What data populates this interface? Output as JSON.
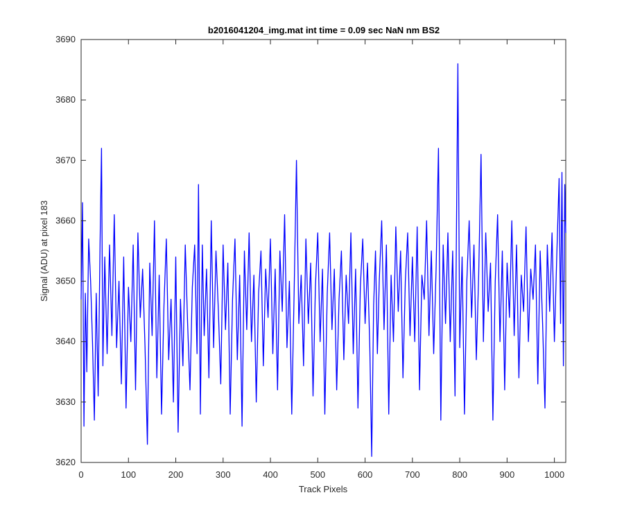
{
  "chart_data": {
    "type": "line",
    "title": "b2016041204_img.mat int time = 0.09 sec  NaN nm BS2",
    "xlabel": "Track Pixels",
    "ylabel": "Signal (ADU) at pixel 183",
    "xlim": [
      0,
      1024
    ],
    "ylim": [
      3620,
      3690
    ],
    "xticks": [
      0,
      100,
      200,
      300,
      400,
      500,
      600,
      700,
      800,
      900,
      1000
    ],
    "yticks": [
      3620,
      3630,
      3640,
      3650,
      3660,
      3670,
      3680,
      3690
    ],
    "grid": false,
    "line_color": "#0000ff",
    "series": [
      {
        "points": [
          [
            0,
            3647
          ],
          [
            3,
            3663
          ],
          [
            6,
            3626
          ],
          [
            9,
            3648
          ],
          [
            12,
            3635
          ],
          [
            16,
            3657
          ],
          [
            20,
            3650
          ],
          [
            24,
            3640
          ],
          [
            28,
            3627
          ],
          [
            32,
            3648
          ],
          [
            36,
            3631
          ],
          [
            40,
            3656
          ],
          [
            43,
            3672
          ],
          [
            46,
            3636
          ],
          [
            50,
            3654
          ],
          [
            55,
            3638
          ],
          [
            60,
            3656
          ],
          [
            65,
            3641
          ],
          [
            70,
            3661
          ],
          [
            75,
            3639
          ],
          [
            80,
            3650
          ],
          [
            85,
            3633
          ],
          [
            90,
            3654
          ],
          [
            95,
            3629
          ],
          [
            100,
            3649
          ],
          [
            105,
            3640
          ],
          [
            110,
            3656
          ],
          [
            115,
            3632
          ],
          [
            120,
            3658
          ],
          [
            125,
            3644
          ],
          [
            130,
            3652
          ],
          [
            135,
            3639
          ],
          [
            140,
            3623
          ],
          [
            145,
            3653
          ],
          [
            150,
            3641
          ],
          [
            155,
            3660
          ],
          [
            160,
            3634
          ],
          [
            165,
            3651
          ],
          [
            170,
            3628
          ],
          [
            175,
            3646
          ],
          [
            180,
            3657
          ],
          [
            185,
            3637
          ],
          [
            190,
            3647
          ],
          [
            195,
            3630
          ],
          [
            200,
            3654
          ],
          [
            205,
            3625
          ],
          [
            210,
            3647
          ],
          [
            215,
            3636
          ],
          [
            220,
            3656
          ],
          [
            225,
            3643
          ],
          [
            230,
            3632
          ],
          [
            235,
            3649
          ],
          [
            240,
            3656
          ],
          [
            245,
            3638
          ],
          [
            248,
            3666
          ],
          [
            252,
            3628
          ],
          [
            256,
            3656
          ],
          [
            260,
            3641
          ],
          [
            265,
            3652
          ],
          [
            270,
            3634
          ],
          [
            275,
            3660
          ],
          [
            280,
            3639
          ],
          [
            285,
            3655
          ],
          [
            290,
            3645
          ],
          [
            295,
            3633
          ],
          [
            300,
            3656
          ],
          [
            305,
            3642
          ],
          [
            310,
            3653
          ],
          [
            315,
            3628
          ],
          [
            320,
            3647
          ],
          [
            325,
            3657
          ],
          [
            330,
            3637
          ],
          [
            335,
            3651
          ],
          [
            340,
            3626
          ],
          [
            345,
            3655
          ],
          [
            350,
            3642
          ],
          [
            355,
            3658
          ],
          [
            360,
            3640
          ],
          [
            365,
            3651
          ],
          [
            370,
            3630
          ],
          [
            375,
            3648
          ],
          [
            380,
            3655
          ],
          [
            385,
            3636
          ],
          [
            390,
            3652
          ],
          [
            395,
            3644
          ],
          [
            400,
            3657
          ],
          [
            405,
            3638
          ],
          [
            410,
            3652
          ],
          [
            415,
            3632
          ],
          [
            420,
            3655
          ],
          [
            425,
            3645
          ],
          [
            430,
            3661
          ],
          [
            435,
            3639
          ],
          [
            440,
            3650
          ],
          [
            445,
            3628
          ],
          [
            450,
            3648
          ],
          [
            455,
            3670
          ],
          [
            460,
            3643
          ],
          [
            465,
            3651
          ],
          [
            470,
            3636
          ],
          [
            475,
            3657
          ],
          [
            480,
            3643
          ],
          [
            485,
            3653
          ],
          [
            490,
            3631
          ],
          [
            495,
            3649
          ],
          [
            500,
            3658
          ],
          [
            505,
            3640
          ],
          [
            510,
            3652
          ],
          [
            515,
            3628
          ],
          [
            520,
            3648
          ],
          [
            525,
            3658
          ],
          [
            530,
            3642
          ],
          [
            535,
            3652
          ],
          [
            540,
            3632
          ],
          [
            545,
            3647
          ],
          [
            550,
            3655
          ],
          [
            555,
            3637
          ],
          [
            560,
            3651
          ],
          [
            565,
            3643
          ],
          [
            570,
            3658
          ],
          [
            575,
            3638
          ],
          [
            580,
            3652
          ],
          [
            585,
            3629
          ],
          [
            590,
            3649
          ],
          [
            595,
            3657
          ],
          [
            600,
            3643
          ],
          [
            605,
            3653
          ],
          [
            610,
            3639
          ],
          [
            614,
            3621
          ],
          [
            618,
            3646
          ],
          [
            622,
            3655
          ],
          [
            626,
            3638
          ],
          [
            630,
            3650
          ],
          [
            635,
            3660
          ],
          [
            640,
            3642
          ],
          [
            645,
            3656
          ],
          [
            650,
            3628
          ],
          [
            655,
            3651
          ],
          [
            660,
            3640
          ],
          [
            665,
            3659
          ],
          [
            670,
            3645
          ],
          [
            675,
            3655
          ],
          [
            680,
            3634
          ],
          [
            685,
            3650
          ],
          [
            690,
            3658
          ],
          [
            695,
            3641
          ],
          [
            700,
            3654
          ],
          [
            705,
            3640
          ],
          [
            710,
            3659
          ],
          [
            715,
            3632
          ],
          [
            720,
            3651
          ],
          [
            725,
            3647
          ],
          [
            730,
            3660
          ],
          [
            735,
            3641
          ],
          [
            740,
            3655
          ],
          [
            745,
            3638
          ],
          [
            750,
            3652
          ],
          [
            755,
            3672
          ],
          [
            760,
            3627
          ],
          [
            765,
            3656
          ],
          [
            770,
            3643
          ],
          [
            775,
            3658
          ],
          [
            780,
            3640
          ],
          [
            785,
            3655
          ],
          [
            790,
            3631
          ],
          [
            796,
            3686
          ],
          [
            800,
            3639
          ],
          [
            805,
            3654
          ],
          [
            810,
            3628
          ],
          [
            815,
            3650
          ],
          [
            820,
            3660
          ],
          [
            825,
            3644
          ],
          [
            830,
            3656
          ],
          [
            835,
            3637
          ],
          [
            840,
            3651
          ],
          [
            845,
            3671
          ],
          [
            850,
            3640
          ],
          [
            855,
            3658
          ],
          [
            860,
            3645
          ],
          [
            865,
            3653
          ],
          [
            870,
            3627
          ],
          [
            875,
            3650
          ],
          [
            880,
            3661
          ],
          [
            885,
            3640
          ],
          [
            890,
            3655
          ],
          [
            895,
            3632
          ],
          [
            900,
            3653
          ],
          [
            905,
            3644
          ],
          [
            910,
            3660
          ],
          [
            915,
            3641
          ],
          [
            920,
            3656
          ],
          [
            925,
            3634
          ],
          [
            930,
            3651
          ],
          [
            935,
            3645
          ],
          [
            940,
            3659
          ],
          [
            945,
            3640
          ],
          [
            950,
            3652
          ],
          [
            955,
            3647
          ],
          [
            960,
            3656
          ],
          [
            965,
            3633
          ],
          [
            970,
            3655
          ],
          [
            975,
            3643
          ],
          [
            980,
            3629
          ],
          [
            985,
            3656
          ],
          [
            990,
            3645
          ],
          [
            995,
            3658
          ],
          [
            1000,
            3640
          ],
          [
            1005,
            3654
          ],
          [
            1010,
            3667
          ],
          [
            1013,
            3643
          ],
          [
            1016,
            3668
          ],
          [
            1019,
            3636
          ],
          [
            1022,
            3666
          ],
          [
            1024,
            3658
          ]
        ]
      }
    ]
  }
}
